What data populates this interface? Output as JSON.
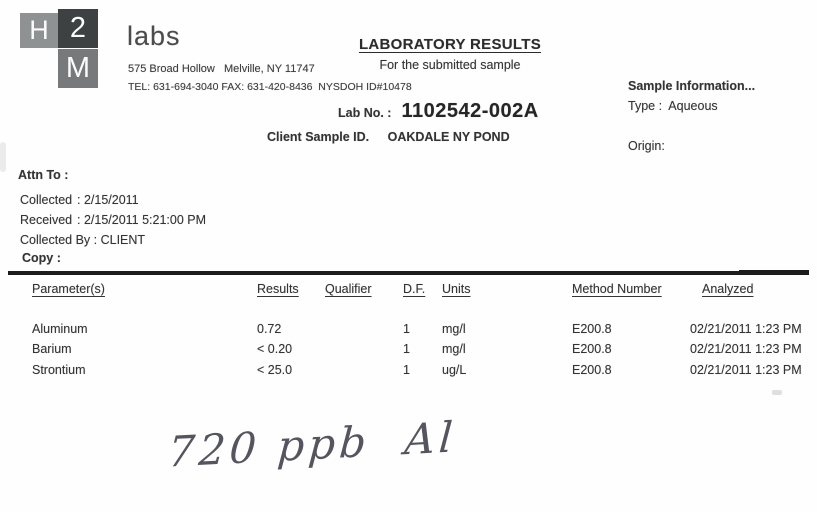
{
  "logo": {
    "blocks": [
      "H",
      "2",
      "M"
    ],
    "brand": "labs",
    "colors": {
      "h_block": "#8f9293",
      "two_block": "#3e4142",
      "m_block": "#77797b",
      "letter": "#fbfbfb"
    }
  },
  "header": {
    "address_line": "575 Broad Hollow   Melville, NY 11747",
    "contact_line": "TEL: 631-694-3040 FAX: 631-420-8436  NYSDOH ID#10478",
    "title": "LABORATORY RESULTS",
    "subtitle": "For the submitted sample"
  },
  "sample": {
    "lab_no_label": "Lab No. :",
    "lab_no": "1102542-002A",
    "client_sample_id_label": "Client Sample ID.",
    "client_sample_id": "OAKDALE NY POND"
  },
  "sample_info": {
    "heading": "Sample Information...",
    "type_line": "Type :  Aqueous",
    "origin_label": "Origin:"
  },
  "meta": {
    "attn_label": "Attn To :",
    "collected_label": "Collected",
    "collected_value": ": 2/15/2011",
    "received_label": "Received",
    "received_value": ": 2/15/2011 5:21:00 PM",
    "collected_by_label": "Collected By :",
    "collected_by_value": " CLIENT",
    "copy_label": "Copy :"
  },
  "table": {
    "headers": [
      "Parameter(s)",
      "Results",
      "Qualifier",
      "D.F.",
      "Units",
      "Method Number",
      "Analyzed"
    ],
    "rows": [
      {
        "parameter": "Aluminum",
        "result": "0.72",
        "qualifier": "",
        "df": "1",
        "units": "mg/l",
        "method": "E200.8",
        "analyzed": "02/21/2011 1:23 PM"
      },
      {
        "parameter": "Barium",
        "result": "< 0.20",
        "qualifier": "",
        "df": "1",
        "units": "mg/l",
        "method": "E200.8",
        "analyzed": "02/21/2011 1:23 PM"
      },
      {
        "parameter": "Strontium",
        "result": "< 25.0",
        "qualifier": "",
        "df": "1",
        "units": "ug/L",
        "method": "E200.8",
        "analyzed": "02/21/2011 1:23 PM"
      }
    ]
  },
  "annotation": {
    "handwritten_note": "720 ppb  Al"
  }
}
